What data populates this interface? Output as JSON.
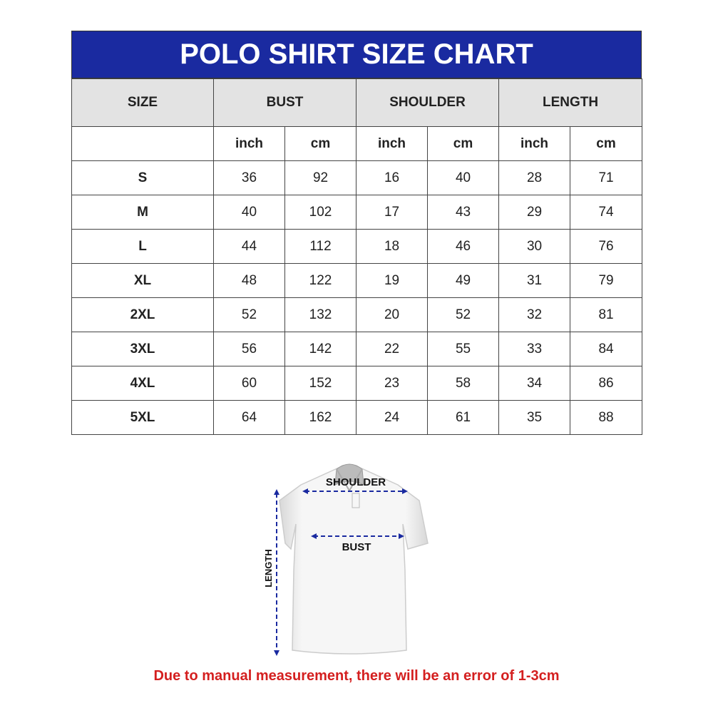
{
  "title": "POLO SHIRT SIZE CHART",
  "headers": [
    "SIZE",
    "BUST",
    "SHOULDER",
    "LENGTH"
  ],
  "units": [
    "inch",
    "cm",
    "inch",
    "cm",
    "inch",
    "cm"
  ],
  "rows": [
    [
      "S",
      "36",
      "92",
      "16",
      "40",
      "28",
      "71"
    ],
    [
      "M",
      "40",
      "102",
      "17",
      "43",
      "29",
      "74"
    ],
    [
      "L",
      "44",
      "112",
      "18",
      "46",
      "30",
      "76"
    ],
    [
      "XL",
      "48",
      "122",
      "19",
      "49",
      "31",
      "79"
    ],
    [
      "2XL",
      "52",
      "132",
      "20",
      "52",
      "32",
      "81"
    ],
    [
      "3XL",
      "56",
      "142",
      "22",
      "55",
      "33",
      "84"
    ],
    [
      "4XL",
      "60",
      "152",
      "23",
      "58",
      "34",
      "86"
    ],
    [
      "5XL",
      "64",
      "162",
      "24",
      "61",
      "35",
      "88"
    ]
  ],
  "diagram": {
    "shoulder": "SHOULDER",
    "bust": "BUST",
    "length": "LENGTH"
  },
  "note": "Due to manual measurement, there will be an error of 1-3cm",
  "colors": {
    "header_bg": "#1a2aa0",
    "subheader_bg": "#e3e3e3",
    "note": "#d41f1f",
    "arrow": "#1a2aa0"
  }
}
